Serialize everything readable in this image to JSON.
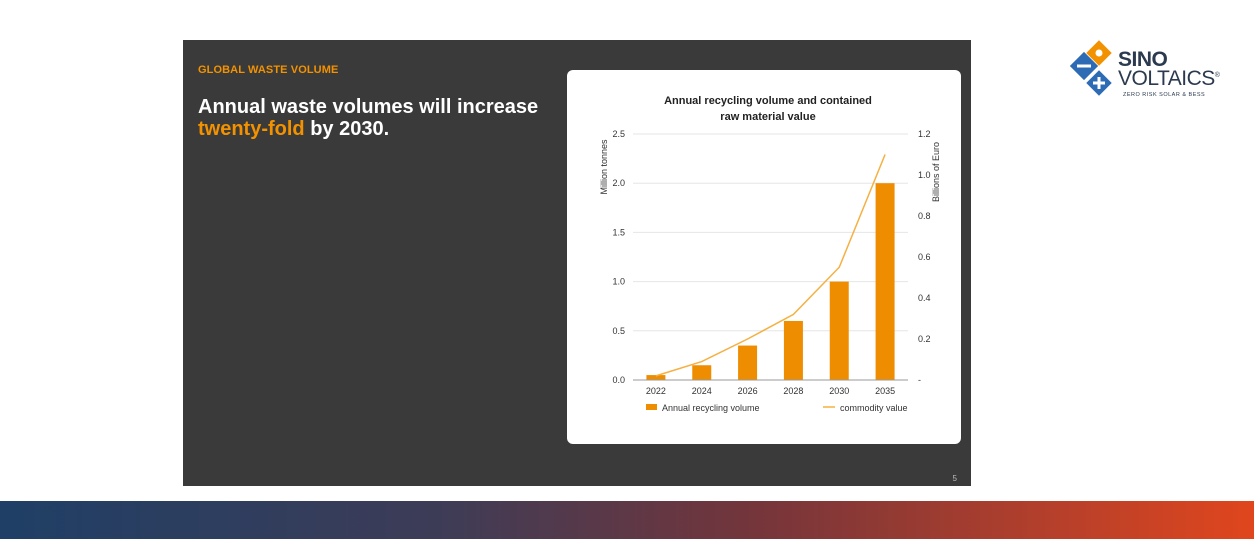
{
  "slide": {
    "eyebrow": "GLOBAL WASTE VOLUME",
    "headline_part1": "Annual waste volumes will increase ",
    "headline_accent": "twenty-fold",
    "headline_part2": " by 2030.",
    "page_number": "5"
  },
  "logo": {
    "line1": "SINO",
    "line2": "VOLTAICS",
    "registered": "®",
    "tagline": "ZERO RISK SOLAR & BESS"
  },
  "colors": {
    "slide_bg": "#3a3a3a",
    "accent": "#f39200",
    "bar": "#ef8d00",
    "line": "#f5b041",
    "logo_blue": "#2d6bb5",
    "logo_orange": "#f39200"
  },
  "chart_data": {
    "type": "bar",
    "title": "Annual recycling volume and contained raw material value",
    "title_lines": [
      "Annual recycling volume and contained",
      "raw material value"
    ],
    "categories": [
      "2022",
      "2024",
      "2026",
      "2028",
      "2030",
      "2035"
    ],
    "ylabel": "Million tonnes",
    "y2label": "Billions of Euro",
    "ylim": [
      0,
      2.5
    ],
    "y2lim": [
      0,
      1.2
    ],
    "yticks": [
      "0.0",
      "0.5",
      "1.0",
      "1.5",
      "2.0",
      "2.5"
    ],
    "y2ticks": [
      "-",
      "0.2",
      "0.4",
      "0.6",
      "0.8",
      "1.0",
      "1.2"
    ],
    "grid": true,
    "legend_position": "bottom",
    "series": [
      {
        "name": "Annual recycling volume",
        "type": "bar",
        "axis": "left",
        "values": [
          0.05,
          0.15,
          0.35,
          0.6,
          1.0,
          2.0
        ]
      },
      {
        "name": "commodity value",
        "type": "line",
        "axis": "right",
        "values": [
          0.02,
          0.09,
          0.2,
          0.32,
          0.55,
          1.1
        ]
      }
    ]
  }
}
